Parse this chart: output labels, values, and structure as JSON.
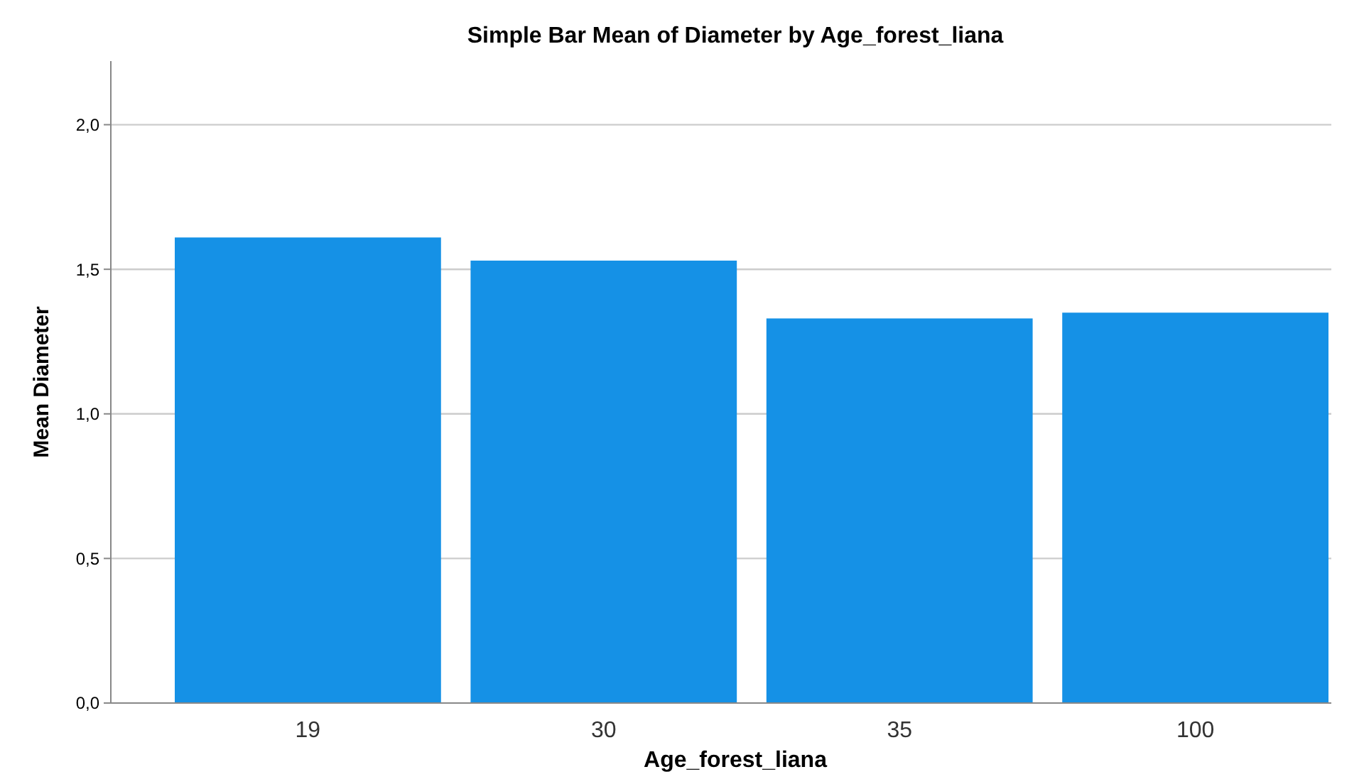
{
  "chart_data": {
    "type": "bar",
    "title": "Simple Bar Mean of Diameter by Age_forest_liana",
    "xlabel": "Age_forest_liana",
    "ylabel": "Mean Diameter",
    "categories": [
      "19",
      "30",
      "35",
      "100"
    ],
    "values": [
      1.61,
      1.53,
      1.33,
      1.35
    ],
    "color": "#1591e6",
    "ylim": [
      0,
      2.22
    ],
    "yticks": [
      {
        "value": 0,
        "label": "0,0"
      },
      {
        "value": 0.5,
        "label": "0,5"
      },
      {
        "value": 1,
        "label": "1,0"
      },
      {
        "value": 1.5,
        "label": "1,5"
      },
      {
        "value": 2,
        "label": "2,0"
      }
    ],
    "grid": "y"
  }
}
